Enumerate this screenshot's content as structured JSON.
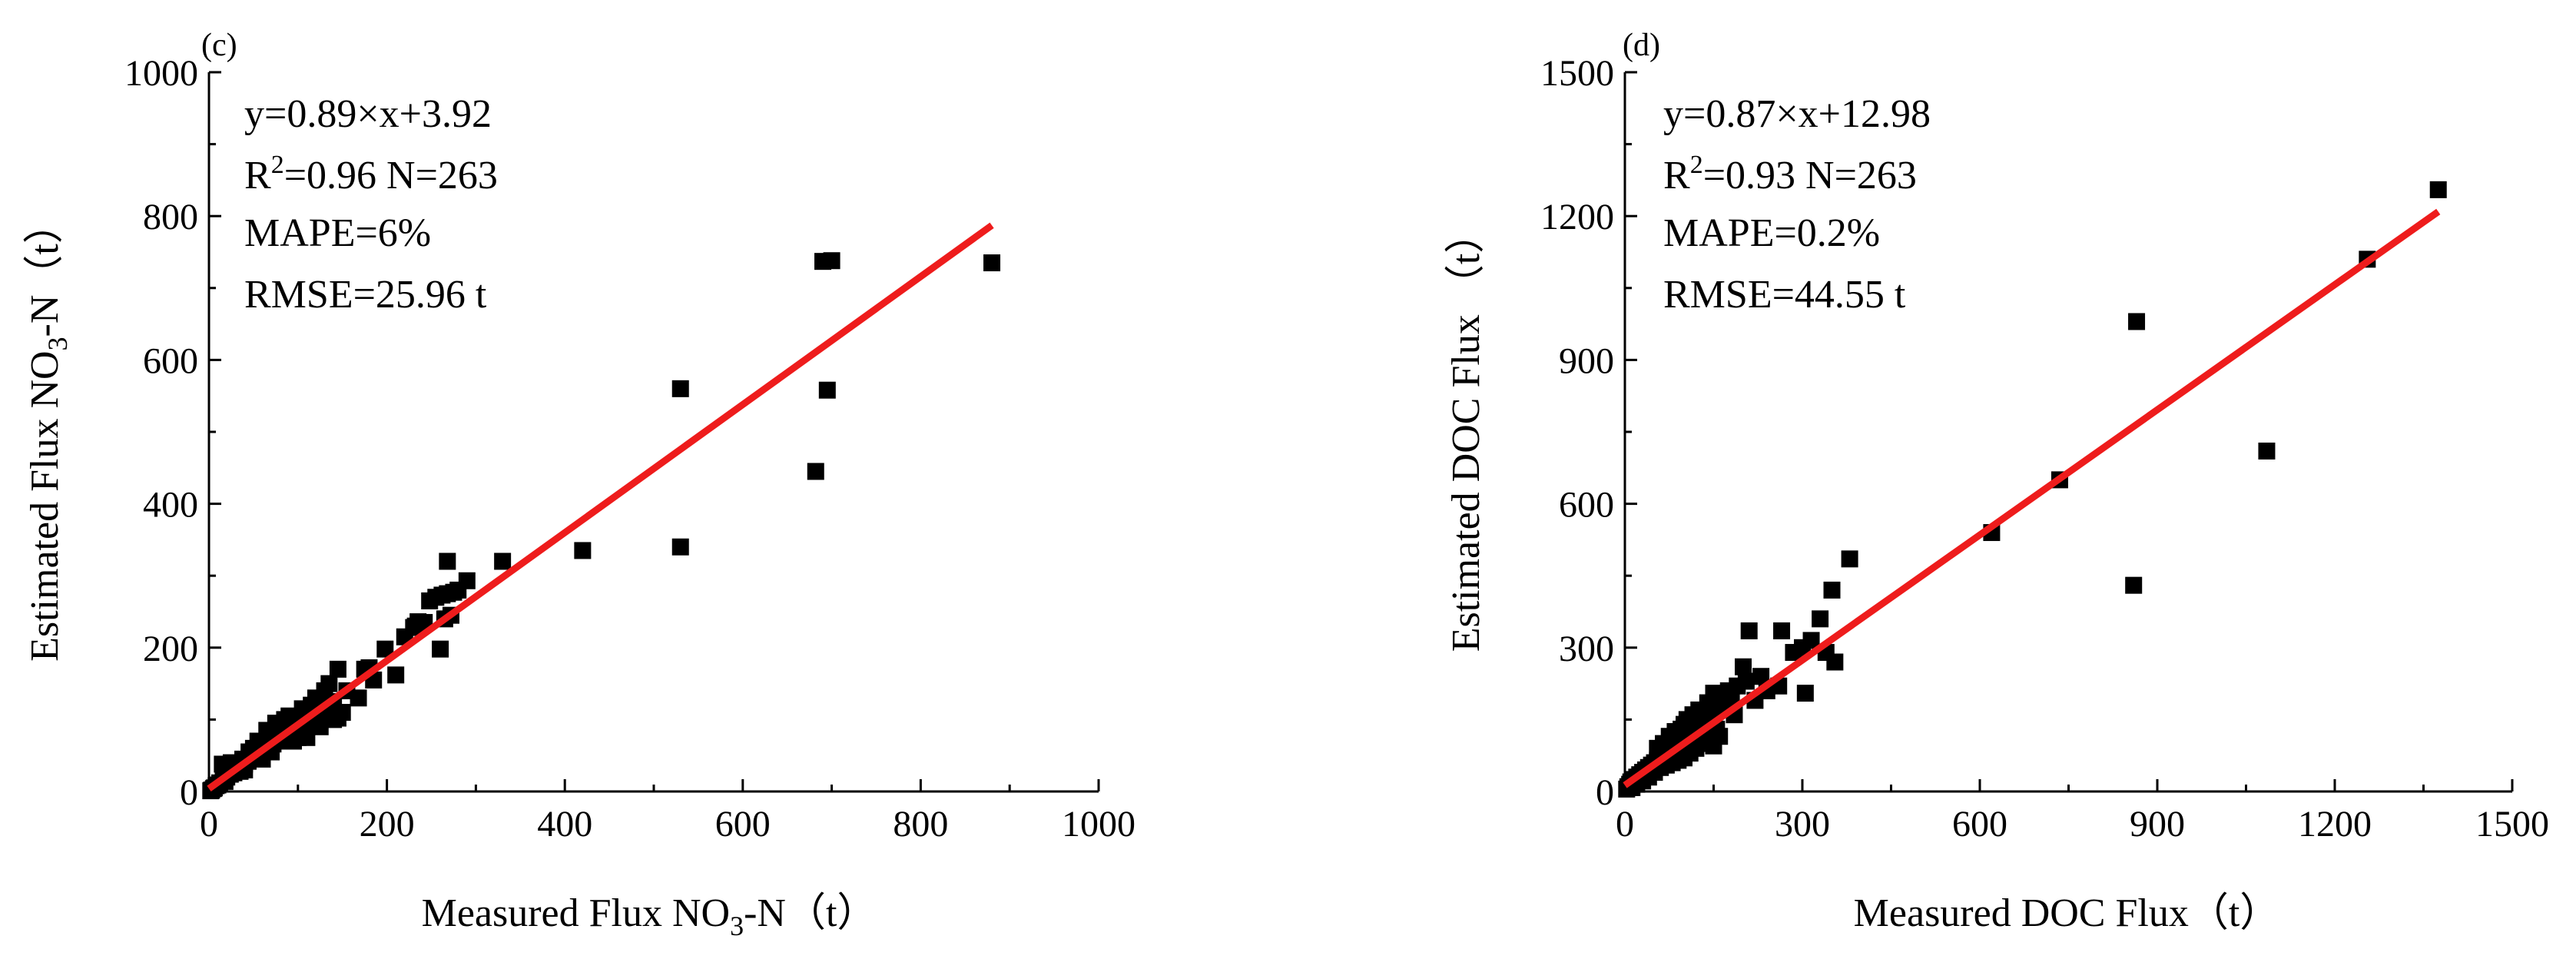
{
  "chart_data": [
    {
      "type": "scatter",
      "panel_label": "(c)",
      "xlabel": "Measured Flux NO₃-N（t）",
      "ylabel": "Estimated Flux NO₃-N（t）",
      "xlim": [
        0,
        1000
      ],
      "ylim": [
        0,
        1000
      ],
      "xticks": [
        "0",
        "200",
        "400",
        "600",
        "800",
        "1000"
      ],
      "yticks": [
        "0",
        "200",
        "400",
        "600",
        "800",
        "1000"
      ],
      "annotations": {
        "equation": "y=0.89×x+3.92",
        "r2": "R²=0.96  N=263",
        "mape": "MAPE=6%",
        "rmse": "RMSE=25.96 t"
      },
      "fit_line": {
        "slope": 0.89,
        "intercept": 3.92,
        "x_range": [
          0,
          880
        ],
        "color": "#ee1c1c"
      },
      "marker_color": "#000000",
      "points": [
        [
          880,
          735
        ],
        [
          700,
          738
        ],
        [
          690,
          737
        ],
        [
          530,
          560
        ],
        [
          695,
          558
        ],
        [
          682,
          445
        ],
        [
          530,
          340
        ],
        [
          420,
          335
        ],
        [
          330,
          320
        ],
        [
          268,
          320
        ],
        [
          290,
          293
        ],
        [
          280,
          280
        ],
        [
          275,
          277
        ],
        [
          268,
          275
        ],
        [
          262,
          273
        ],
        [
          255,
          270
        ],
        [
          248,
          265
        ],
        [
          272,
          245
        ],
        [
          265,
          240
        ],
        [
          242,
          235
        ],
        [
          238,
          232
        ],
        [
          232,
          230
        ],
        [
          220,
          215
        ],
        [
          198,
          198
        ],
        [
          260,
          198
        ],
        [
          180,
          172
        ],
        [
          175,
          170
        ],
        [
          145,
          170
        ],
        [
          210,
          162
        ],
        [
          185,
          155
        ],
        [
          155,
          140
        ],
        [
          168,
          130
        ],
        [
          135,
          125
        ],
        [
          145,
          102
        ],
        [
          140,
          118
        ],
        [
          128,
          112
        ],
        [
          122,
          106
        ],
        [
          118,
          102
        ],
        [
          112,
          98
        ],
        [
          108,
          94
        ],
        [
          104,
          92
        ],
        [
          100,
          88
        ],
        [
          96,
          86
        ],
        [
          92,
          84
        ],
        [
          88,
          80
        ],
        [
          84,
          76
        ],
        [
          80,
          72
        ],
        [
          76,
          70
        ],
        [
          72,
          66
        ],
        [
          68,
          62
        ],
        [
          64,
          58
        ],
        [
          60,
          56
        ],
        [
          56,
          52
        ],
        [
          52,
          48
        ],
        [
          48,
          46
        ],
        [
          44,
          42
        ],
        [
          40,
          38
        ],
        [
          36,
          34
        ],
        [
          32,
          30
        ],
        [
          28,
          26
        ],
        [
          24,
          24
        ],
        [
          20,
          20
        ],
        [
          16,
          16
        ],
        [
          12,
          12
        ],
        [
          8,
          8
        ],
        [
          5,
          4
        ],
        [
          3,
          2
        ],
        [
          2,
          1
        ],
        [
          25,
          40
        ],
        [
          15,
          38
        ],
        [
          110,
          75
        ],
        [
          125,
          90
        ],
        [
          95,
          70
        ],
        [
          85,
          100
        ],
        [
          75,
          95
        ],
        [
          65,
          85
        ],
        [
          55,
          70
        ],
        [
          50,
          60
        ],
        [
          45,
          55
        ],
        [
          38,
          45
        ],
        [
          30,
          35
        ],
        [
          22,
          25
        ],
        [
          130,
          140
        ],
        [
          120,
          130
        ],
        [
          105,
          115
        ],
        [
          90,
          105
        ],
        [
          100,
          75
        ],
        [
          150,
          110
        ],
        [
          60,
          45
        ],
        [
          35,
          28
        ],
        [
          40,
          30
        ],
        [
          135,
          150
        ],
        [
          140,
          100
        ],
        [
          115,
          120
        ],
        [
          130,
          105
        ],
        [
          90,
          75
        ],
        [
          70,
          55
        ],
        [
          80,
          90
        ],
        [
          58,
          66
        ],
        [
          18,
          14
        ],
        [
          10,
          9
        ],
        [
          6,
          5
        ],
        [
          230,
          228
        ],
        [
          235,
          236
        ]
      ]
    },
    {
      "type": "scatter",
      "panel_label": "(d)",
      "xlabel": "Measured DOC Flux（t）",
      "ylabel": "Estimated  DOC Flux （t）",
      "xlim": [
        0,
        1500
      ],
      "ylim": [
        0,
        1500
      ],
      "xticks": [
        "0",
        "300",
        "600",
        "900",
        "1200",
        "1500"
      ],
      "yticks": [
        "0",
        "300",
        "600",
        "900",
        "1200",
        "1500"
      ],
      "annotations": {
        "equation": "y=0.87×x+12.98",
        "r2": "R²=0.93  N=263",
        "mape": "MAPE=0.2%",
        "rmse": "RMSE=44.55 t"
      },
      "fit_line": {
        "slope": 0.87,
        "intercept": 12.98,
        "x_range": [
          0,
          1375
        ],
        "color": "#ee1c1c"
      },
      "marker_color": "#000000",
      "points": [
        [
          1375,
          1255
        ],
        [
          1255,
          1110
        ],
        [
          865,
          980
        ],
        [
          1085,
          710
        ],
        [
          735,
          650
        ],
        [
          620,
          540
        ],
        [
          860,
          430
        ],
        [
          380,
          485
        ],
        [
          350,
          420
        ],
        [
          330,
          360
        ],
        [
          210,
          335
        ],
        [
          265,
          335
        ],
        [
          315,
          315
        ],
        [
          300,
          300
        ],
        [
          285,
          290
        ],
        [
          340,
          290
        ],
        [
          355,
          270
        ],
        [
          305,
          205
        ],
        [
          260,
          220
        ],
        [
          240,
          210
        ],
        [
          230,
          240
        ],
        [
          200,
          260
        ],
        [
          205,
          230
        ],
        [
          190,
          220
        ],
        [
          175,
          210
        ],
        [
          165,
          200
        ],
        [
          160,
          190
        ],
        [
          150,
          180
        ],
        [
          145,
          170
        ],
        [
          140,
          160
        ],
        [
          135,
          150
        ],
        [
          130,
          140
        ],
        [
          125,
          135
        ],
        [
          120,
          130
        ],
        [
          115,
          125
        ],
        [
          110,
          120
        ],
        [
          105,
          115
        ],
        [
          100,
          110
        ],
        [
          95,
          105
        ],
        [
          90,
          100
        ],
        [
          85,
          95
        ],
        [
          80,
          90
        ],
        [
          75,
          85
        ],
        [
          70,
          80
        ],
        [
          65,
          75
        ],
        [
          60,
          70
        ],
        [
          55,
          65
        ],
        [
          50,
          60
        ],
        [
          45,
          55
        ],
        [
          40,
          50
        ],
        [
          35,
          45
        ],
        [
          30,
          40
        ],
        [
          25,
          35
        ],
        [
          20,
          30
        ],
        [
          15,
          25
        ],
        [
          10,
          20
        ],
        [
          8,
          15
        ],
        [
          5,
          10
        ],
        [
          3,
          5
        ],
        [
          150,
          95
        ],
        [
          145,
          110
        ],
        [
          160,
          115
        ],
        [
          130,
          100
        ],
        [
          120,
          90
        ],
        [
          110,
          80
        ],
        [
          100,
          70
        ],
        [
          90,
          65
        ],
        [
          80,
          60
        ],
        [
          70,
          55
        ],
        [
          60,
          50
        ],
        [
          50,
          40
        ],
        [
          100,
          140
        ],
        [
          95,
          130
        ],
        [
          85,
          125
        ],
        [
          75,
          115
        ],
        [
          65,
          100
        ],
        [
          55,
          90
        ],
        [
          170,
          200
        ],
        [
          180,
          195
        ],
        [
          140,
          185
        ],
        [
          125,
          170
        ],
        [
          115,
          160
        ],
        [
          105,
          150
        ],
        [
          155,
          130
        ],
        [
          165,
          175
        ],
        [
          150,
          205
        ],
        [
          135,
          120
        ],
        [
          40,
          30
        ],
        [
          30,
          22
        ],
        [
          20,
          15
        ],
        [
          12,
          8
        ],
        [
          220,
          190
        ],
        [
          185,
          160
        ]
      ]
    }
  ]
}
